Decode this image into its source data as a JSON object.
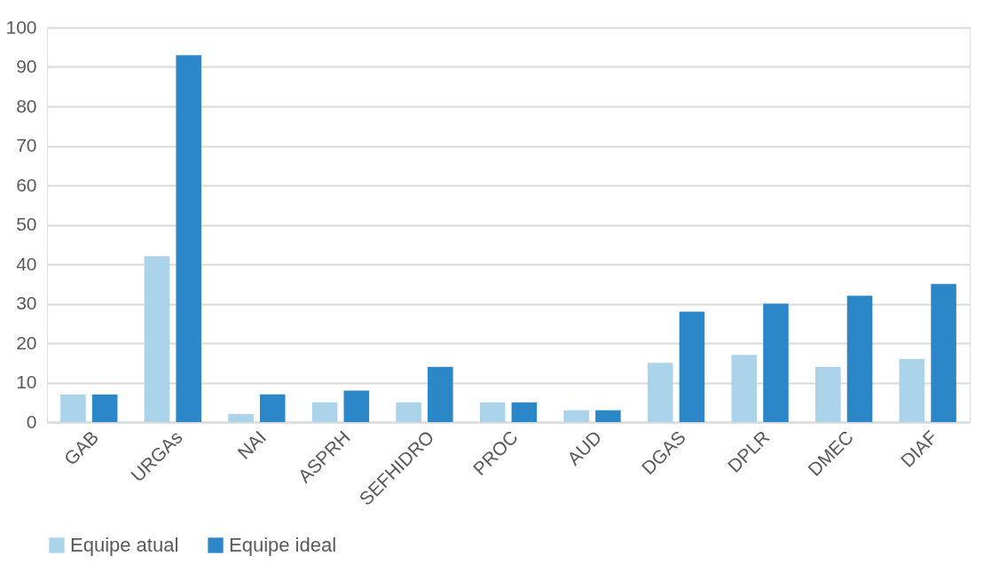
{
  "chart_data": {
    "type": "bar",
    "categories": [
      "GAB",
      "URGAs",
      "NAI",
      "ASPRH",
      "SEFHIDRO",
      "PROC",
      "AUD",
      "DGAS",
      "DPLR",
      "DMEC",
      "DIAF"
    ],
    "series": [
      {
        "name": "Equipe atual",
        "color": "#abd3ea",
        "values": [
          7,
          42,
          2,
          5,
          5,
          5,
          3,
          15,
          17,
          14,
          16
        ]
      },
      {
        "name": "Equipe ideal",
        "color": "#2b87c8",
        "values": [
          7,
          93,
          7,
          8,
          14,
          5,
          3,
          28,
          30,
          32,
          35
        ]
      }
    ],
    "ylim": [
      0,
      100
    ],
    "yticks": [
      0,
      10,
      20,
      30,
      40,
      50,
      60,
      70,
      80,
      90,
      100
    ],
    "grid": "y",
    "legend": "bottom"
  }
}
